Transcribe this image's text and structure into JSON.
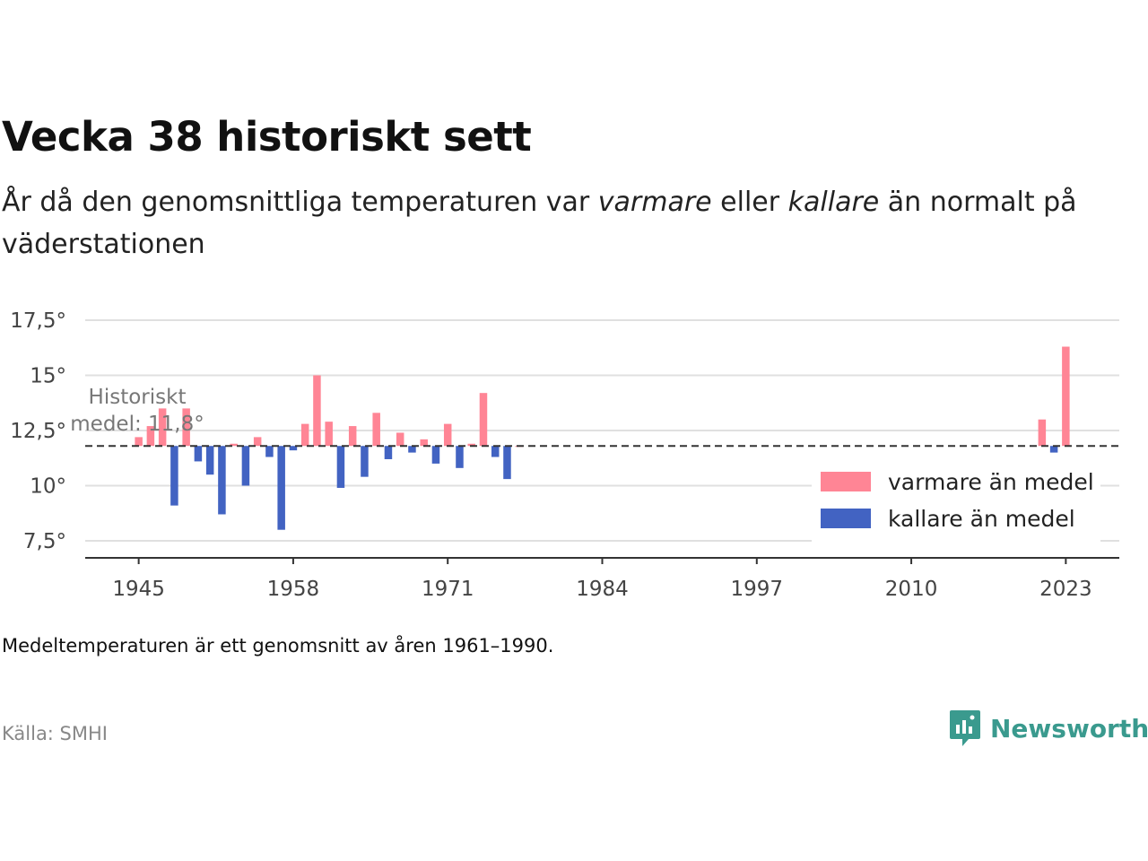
{
  "header": {
    "title": "Vecka 38 historiskt sett",
    "subtitle_part1": "År då den genomsnittliga temperaturen var ",
    "subtitle_em1": "varmare",
    "subtitle_part2": " eller ",
    "subtitle_em2": "kallare",
    "subtitle_part3": " än normalt på väderstationen"
  },
  "footer": {
    "note": "Medeltemperaturen är ett genomsnitt av åren 1961–1990.",
    "source": "Källa: SMHI",
    "brand": "Newsworthy"
  },
  "colors": {
    "warm": "#ff8595",
    "cold": "#4263c2",
    "brand": "#3a9a8e"
  },
  "chart_data": {
    "type": "bar",
    "baseline": 11.8,
    "annotation_line1": "Historiskt",
    "annotation_line2": "medel: 11,8°",
    "ylim": [
      7,
      18
    ],
    "yticks": [
      7.5,
      10,
      12.5,
      15,
      17.5
    ],
    "ytick_labels": [
      "7,5°",
      "10°",
      "12,5°",
      "15°",
      "17,5°"
    ],
    "xlim": [
      1940.5,
      2027.5
    ],
    "xticks": [
      1945,
      1958,
      1971,
      1984,
      1997,
      2010,
      2023
    ],
    "xtick_labels": [
      "1945",
      "1958",
      "1971",
      "1984",
      "1997",
      "2010",
      "2023"
    ],
    "grid": true,
    "legend_position": "bottom-right",
    "series": [
      {
        "name": "varmare än medel",
        "color": "#ff8595"
      },
      {
        "name": "kallare än medel",
        "color": "#4263c2"
      }
    ],
    "years": [
      1945,
      1946,
      1947,
      1948,
      1949,
      1950,
      1951,
      1952,
      1953,
      1954,
      1955,
      1956,
      1957,
      1958,
      1959,
      1960,
      1961,
      1962,
      1963,
      1964,
      1965,
      1966,
      1967,
      1968,
      1969,
      1970,
      1971,
      1972,
      1973,
      1974,
      1975,
      1976,
      1977,
      2021,
      2022,
      2023
    ],
    "values": [
      12.2,
      12.7,
      13.5,
      9.1,
      13.5,
      11.1,
      10.5,
      8.7,
      11.9,
      10.0,
      12.2,
      11.3,
      8.0,
      11.6,
      12.8,
      15.0,
      12.9,
      9.9,
      12.7,
      10.4,
      13.3,
      11.2,
      12.4,
      11.5,
      12.1,
      11.0,
      12.8,
      10.8,
      11.9,
      14.2,
      11.3,
      10.3,
      11.8,
      13.0,
      11.5,
      16.3
    ]
  }
}
